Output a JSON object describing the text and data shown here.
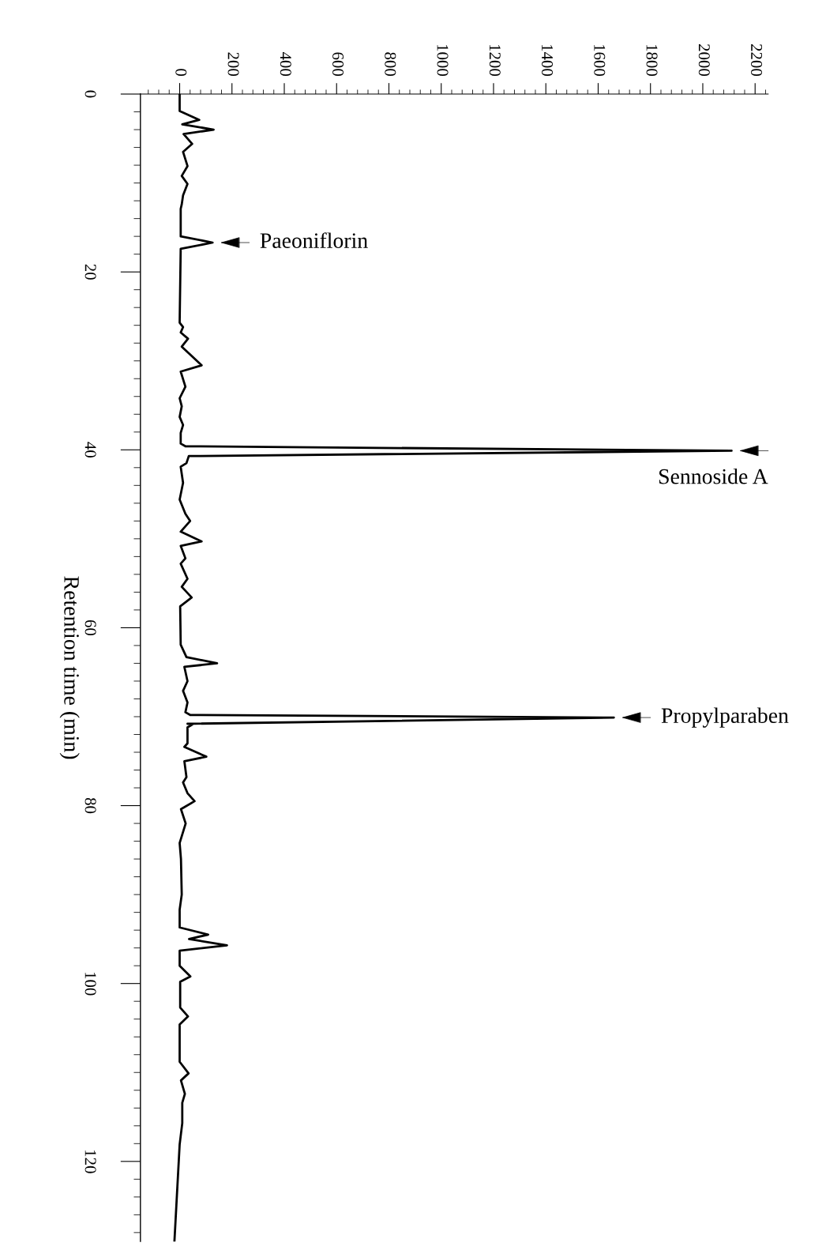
{
  "chart_data": {
    "type": "line",
    "ylabel": "Retention time (min)",
    "values": [
      0,
      1.9,
      2.9,
      3.4,
      4.0,
      4.5,
      5.6,
      6.5,
      8.1,
      9.2,
      10.1,
      11.4,
      12.4,
      12.9,
      16.0,
      16.7,
      17.4,
      25.7,
      26.2,
      26.8,
      27.5,
      28.4,
      30.5,
      31.2,
      32.9,
      34.2,
      35.1,
      36.3,
      37.2,
      38.1,
      39.3,
      39.6,
      40.1,
      40.7,
      41.5,
      41.9,
      43.7,
      45.6,
      47.2,
      48.0,
      49.2,
      50.3,
      50.8,
      52.2,
      52.8,
      54.5,
      55.4,
      56.6,
      57.6,
      61.9,
      63.3,
      64.0,
      64.4,
      66.0,
      67.1,
      68.4,
      69.5,
      69.8,
      70.1,
      70.8,
      70.9,
      71.2,
      73.0,
      73.4,
      74.5,
      75.0,
      76.8,
      77.4,
      78.6,
      79.5,
      80.4,
      82.0,
      84.2,
      86.0,
      90.0,
      91.7,
      93.7,
      94.5,
      95.0,
      95.7,
      96.3,
      98.0,
      99.2,
      99.8,
      102.7,
      103.7,
      104.6,
      108.8,
      110.1,
      110.9,
      112.4,
      113.4,
      115.7,
      118.1,
      129
    ],
    "x": [
      0,
      0,
      75,
      10,
      130,
      15,
      48,
      13,
      30,
      8,
      30,
      13,
      8,
      4,
      4,
      126,
      4,
      0,
      13,
      4,
      32,
      8,
      84,
      4,
      22,
      0,
      8,
      0,
      13,
      4,
      4,
      22,
      2110,
      35,
      26,
      4,
      13,
      0,
      22,
      40,
      4,
      84,
      4,
      22,
      4,
      30,
      8,
      46,
      2,
      4,
      26,
      143,
      18,
      30,
      13,
      30,
      22,
      40,
      1660,
      30,
      48,
      30,
      30,
      18,
      102,
      18,
      26,
      13,
      30,
      57,
      5,
      23,
      0,
      5,
      8,
      0,
      0,
      109,
      36,
      181,
      0,
      0,
      41,
      2,
      2,
      32,
      0,
      0,
      34,
      5,
      20,
      10,
      10,
      0,
      -20
    ],
    "color": "#000000",
    "marker": "none",
    "line_style": "solid",
    "grid": false,
    "ylim": [
      129,
      0
    ],
    "yticks": [
      0,
      20,
      40,
      60,
      80,
      100,
      120
    ],
    "xlim": [
      -150,
      2250
    ],
    "xticks": [
      0,
      200,
      400,
      600,
      800,
      1000,
      1200,
      1400,
      1600,
      1800,
      2000,
      2200
    ],
    "annotations": [
      {
        "text": "Paeoniflorin",
        "x": 126,
        "y": 16.7
      },
      {
        "text": "Sennoside A",
        "x": 2110,
        "y": 40.1
      },
      {
        "text": "Propylparaben",
        "x": 1660,
        "y": 70.1
      }
    ]
  }
}
